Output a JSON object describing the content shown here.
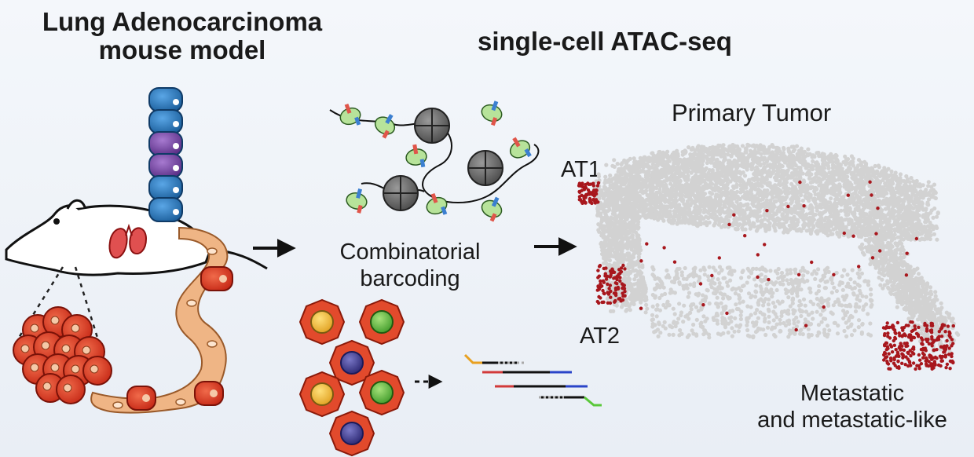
{
  "title_left": [
    "Lung Adenocarcinoma",
    "mouse model"
  ],
  "title_right": "single-cell ATAC-seq",
  "combinatorial": [
    "Combinatorial",
    "barcoding"
  ],
  "plot_labels": {
    "primary": "Primary Tumor",
    "at1": "AT1",
    "at2": "AT2",
    "metastatic": [
      "Metastatic",
      "and metastatic-like"
    ]
  },
  "colors": {
    "tumor_red": "#d8341f",
    "highlight_red": "#a8171d",
    "cloud_grey": "#d2d2d2",
    "epithelium_blue": "#2e7fc4",
    "epithelium_purple": "#7a4aa6",
    "stroma_tan": "#e6a878"
  },
  "icons": [
    "mouse-icon",
    "lung-icon",
    "nucleosome-icon",
    "tn5-transposase-icon",
    "cell-icon",
    "arrow-icon",
    "dna-fragment-icon"
  ]
}
